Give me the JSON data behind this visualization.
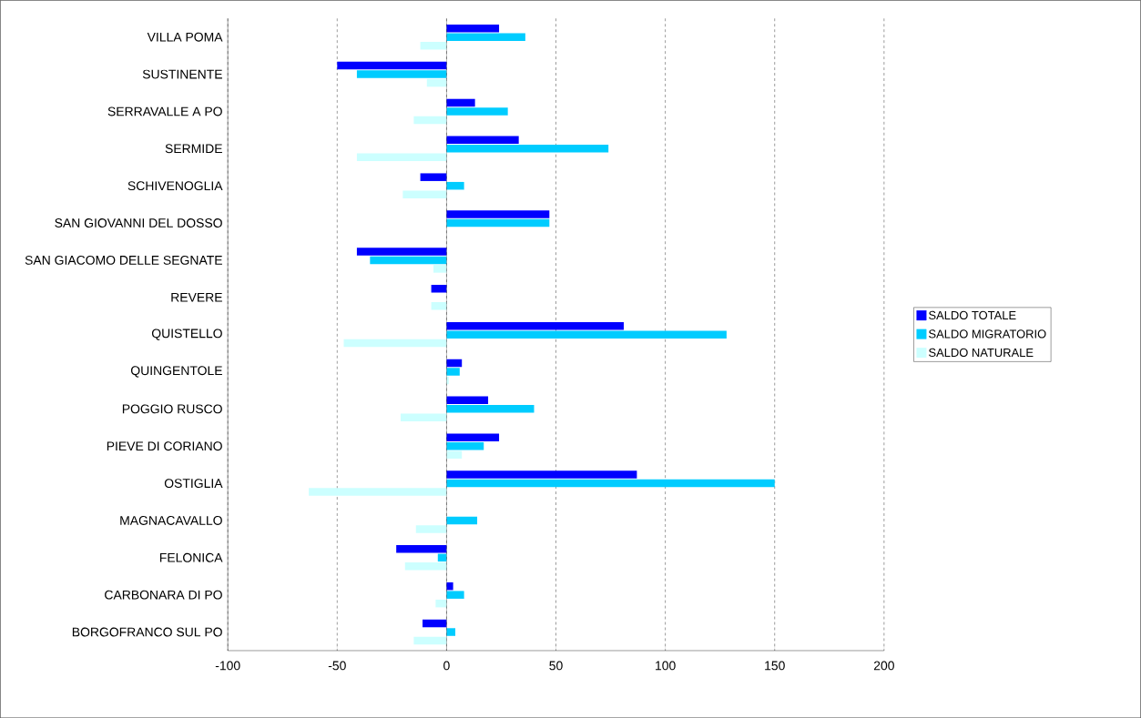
{
  "chart_data": {
    "type": "bar",
    "orientation": "horizontal",
    "categories": [
      "VILLA POMA",
      "SUSTINENTE",
      "SERRAVALLE A PO",
      "SERMIDE",
      "SCHIVENOGLIA",
      "SAN GIOVANNI DEL DOSSO",
      "SAN GIACOMO DELLE SEGNATE",
      "REVERE",
      "QUISTELLO",
      "QUINGENTOLE",
      "POGGIO RUSCO",
      "PIEVE DI CORIANO",
      "OSTIGLIA",
      "MAGNACAVALLO",
      "FELONICA",
      "CARBONARA DI PO",
      "BORGOFRANCO SUL PO"
    ],
    "series": [
      {
        "name": "SALDO TOTALE",
        "color": "#0000ff",
        "values": [
          24,
          -50,
          13,
          33,
          -12,
          47,
          -41,
          -7,
          81,
          7,
          19,
          24,
          87,
          0,
          -23,
          3,
          -11
        ]
      },
      {
        "name": "SALDO MIGRATORIO",
        "color": "#00ccff",
        "values": [
          36,
          -41,
          28,
          74,
          8,
          47,
          -35,
          0,
          128,
          6,
          40,
          17,
          150,
          14,
          -4,
          8,
          4
        ]
      },
      {
        "name": "SALDO NATURALE",
        "color": "#ccffff",
        "values": [
          -12,
          -9,
          -15,
          -41,
          -20,
          0,
          -6,
          -7,
          -47,
          1,
          -21,
          7,
          -63,
          -14,
          -19,
          -5,
          -15
        ]
      }
    ],
    "xlim": [
      -100,
      200
    ],
    "xticks": [
      -100,
      -50,
      0,
      50,
      100,
      150,
      200
    ],
    "grid": "x",
    "legend": "right"
  }
}
